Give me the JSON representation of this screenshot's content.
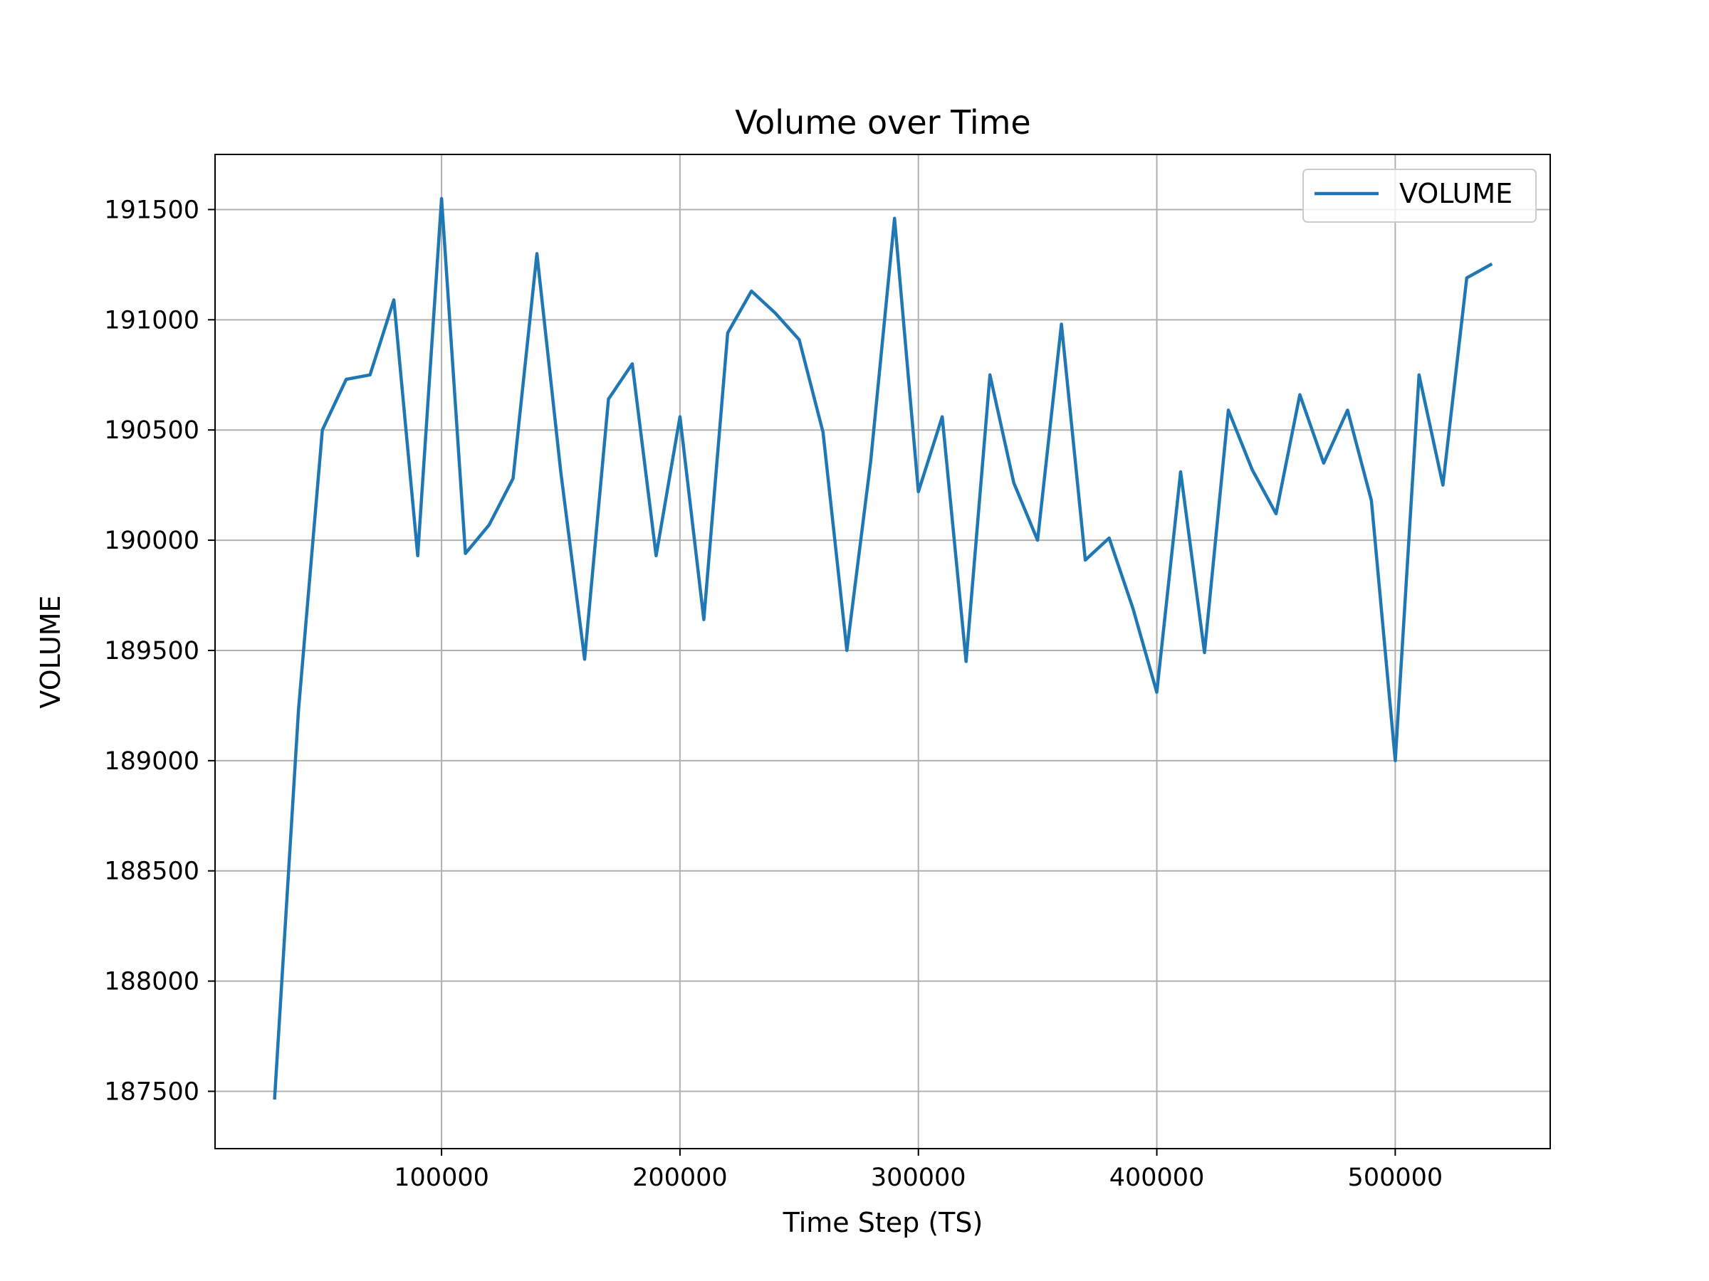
{
  "chart_data": {
    "type": "line",
    "title": "Volume over Time",
    "xlabel": "Time Step (TS)",
    "ylabel": "VOLUME",
    "xlim": [
      5000,
      565000
    ],
    "ylim": [
      187240,
      191750
    ],
    "xticks": [
      100000,
      200000,
      300000,
      400000,
      500000
    ],
    "yticks": [
      187500,
      188000,
      188500,
      189000,
      189500,
      190000,
      190500,
      191000,
      191500
    ],
    "grid": true,
    "legend_position": "upper right",
    "series": [
      {
        "name": "VOLUME",
        "color": "#1f77b4",
        "x": [
          30000,
          40000,
          50000,
          60000,
          70000,
          80000,
          90000,
          100000,
          110000,
          120000,
          130000,
          140000,
          150000,
          160000,
          170000,
          180000,
          190000,
          200000,
          210000,
          220000,
          230000,
          240000,
          250000,
          260000,
          270000,
          280000,
          290000,
          300000,
          310000,
          320000,
          330000,
          340000,
          350000,
          360000,
          370000,
          380000,
          390000,
          400000,
          410000,
          420000,
          430000,
          440000,
          450000,
          460000,
          470000,
          480000,
          490000,
          500000,
          510000,
          520000,
          530000,
          540000
        ],
        "y": [
          187470,
          189230,
          190500,
          190730,
          190750,
          191090,
          189930,
          191550,
          189940,
          190070,
          190280,
          191300,
          190310,
          189460,
          190640,
          190800,
          189930,
          190560,
          189640,
          190940,
          191130,
          191030,
          190910,
          190490,
          189500,
          190360,
          191460,
          190220,
          190560,
          189450,
          190750,
          190260,
          190000,
          190980,
          189910,
          190010,
          189690,
          189310,
          190310,
          189490,
          190590,
          190320,
          190120,
          190660,
          190350,
          190590,
          190180,
          189000,
          190750,
          190250,
          191190,
          191250
        ]
      }
    ]
  }
}
